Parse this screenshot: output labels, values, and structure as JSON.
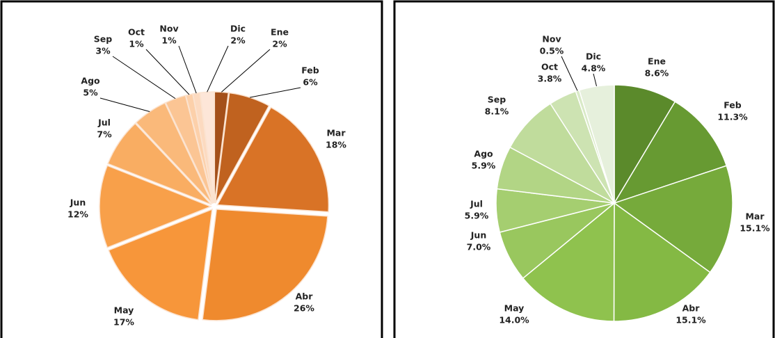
{
  "chart_data": [
    {
      "type": "pie",
      "categories": [
        "Ene",
        "Feb",
        "Mar",
        "Abr",
        "May",
        "Jun",
        "Jul",
        "Ago",
        "Sep",
        "Oct",
        "Nov",
        "Dic"
      ],
      "values": [
        2,
        6,
        18,
        26,
        17,
        12,
        7,
        5,
        3,
        1,
        1,
        2
      ],
      "value_labels": [
        "2%",
        "6%",
        "18%",
        "26%",
        "17%",
        "12%",
        "7%",
        "5%",
        "3%",
        "1%",
        "1%",
        "2%"
      ],
      "colors": [
        "#a4501a",
        "#c0621f",
        "#d97326",
        "#ef8a2e",
        "#f7963a",
        "#f8a04a",
        "#f9ad62",
        "#fab97a",
        "#fbc594",
        "#fcd0aa",
        "#fcdac0",
        "#fde6d8"
      ]
    },
    {
      "type": "pie",
      "categories": [
        "Ene",
        "Feb",
        "Mar",
        "Abr",
        "May",
        "Jun",
        "Jul",
        "Ago",
        "Sep",
        "Oct",
        "Nov",
        "Dic"
      ],
      "values": [
        8.6,
        11.3,
        15.1,
        15.1,
        14.0,
        7.0,
        5.9,
        5.9,
        8.1,
        3.8,
        0.5,
        4.8
      ],
      "value_labels": [
        "8.6%",
        "11.3%",
        "15.1%",
        "15.1%",
        "14.0%",
        "7.0%",
        "5.9%",
        "5.9%",
        "8.1%",
        "3.8%",
        "0.5%",
        "4.8%"
      ],
      "colors": [
        "#5b8a2b",
        "#679a32",
        "#76aa3b",
        "#84b944",
        "#8fc24e",
        "#99c75e",
        "#a5ce70",
        "#b2d585",
        "#c0dc9c",
        "#cde3b2",
        "#d9eac7",
        "#e6f0dc"
      ]
    }
  ]
}
